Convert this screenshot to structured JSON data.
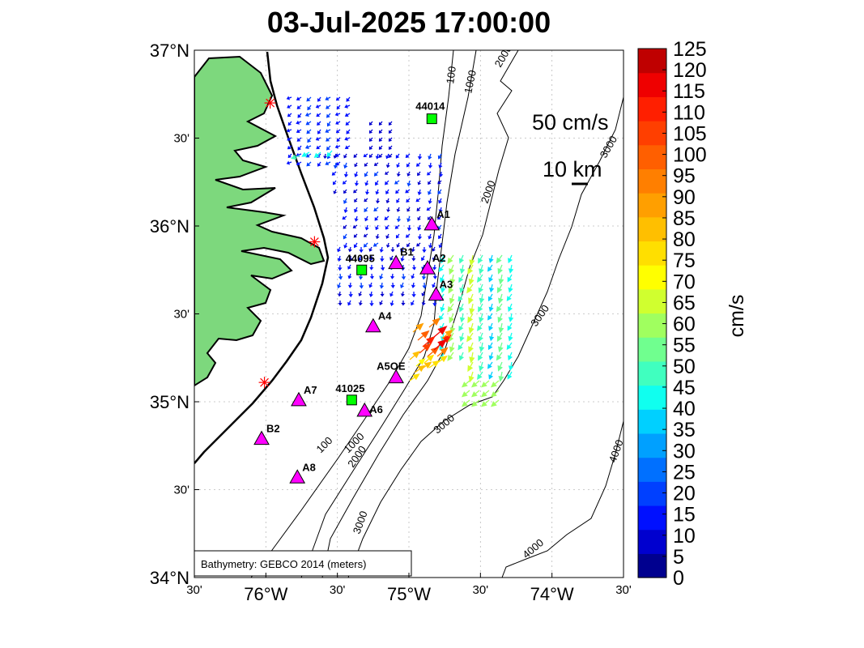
{
  "title": "03-Jul-2025 17:00:00",
  "axes": {
    "lat_ticks": [
      {
        "lat": 37.0,
        "label": "37°N",
        "major": true
      },
      {
        "lat": 36.5,
        "label": "30'",
        "major": false
      },
      {
        "lat": 36.0,
        "label": "36°N",
        "major": true
      },
      {
        "lat": 35.5,
        "label": "30'",
        "major": false
      },
      {
        "lat": 35.0,
        "label": "35°N",
        "major": true
      },
      {
        "lat": 34.5,
        "label": "30'",
        "major": false
      },
      {
        "lat": 34.0,
        "label": "34°N",
        "major": true
      }
    ],
    "lon_ticks": [
      {
        "lon": -76.5,
        "label": "30'",
        "major": false
      },
      {
        "lon": -76.0,
        "label": "76°W",
        "major": true
      },
      {
        "lon": -75.5,
        "label": "30'",
        "major": false
      },
      {
        "lon": -75.0,
        "label": "75°W",
        "major": true
      },
      {
        "lon": -74.5,
        "label": "30'",
        "major": false
      },
      {
        "lon": -74.0,
        "label": "74°W",
        "major": true
      },
      {
        "lon": -73.5,
        "label": "30'",
        "major": false
      }
    ],
    "lon_range": [
      -76.5,
      -73.5
    ],
    "lat_range": [
      34.0,
      37.0
    ],
    "grid": true
  },
  "scale": {
    "vector_label": "50 cm/s",
    "distance_label": "10 km"
  },
  "bathymetry_note": "Bathymetry: GEBCO 2014 (meters)",
  "colorbar": {
    "unit_label": "cm/s",
    "min": 0,
    "max": 125,
    "step": 5,
    "tick_labels": [
      "0",
      "5",
      "10",
      "15",
      "20",
      "25",
      "30",
      "35",
      "40",
      "45",
      "50",
      "55",
      "60",
      "65",
      "70",
      "75",
      "80",
      "85",
      "90",
      "95",
      "100",
      "105",
      "110",
      "115",
      "120",
      "125"
    ],
    "colors": [
      "#00008f",
      "#0000cf",
      "#0010ff",
      "#0040ff",
      "#0070ff",
      "#00a0ff",
      "#00d0ff",
      "#10ffef",
      "#40ffbf",
      "#70ff8f",
      "#a0ff5f",
      "#d0ff2f",
      "#ffff00",
      "#ffdf00",
      "#ffbf00",
      "#ff9f00",
      "#ff7f00",
      "#ff5f00",
      "#ff3f00",
      "#ff1f00",
      "#ef0000",
      "#bf0000"
    ]
  },
  "stations": [
    {
      "id": "44014",
      "type": "buoy",
      "lon": -74.84,
      "lat": 36.61
    },
    {
      "id": "44095",
      "type": "buoy",
      "lon": -75.33,
      "lat": 35.75
    },
    {
      "id": "41025",
      "type": "buoy",
      "lon": -75.4,
      "lat": 35.01
    },
    {
      "id": "A1",
      "type": "mooring",
      "lon": -74.84,
      "lat": 36.01
    },
    {
      "id": "A2",
      "type": "mooring",
      "lon": -74.87,
      "lat": 35.76
    },
    {
      "id": "A3",
      "type": "mooring",
      "lon": -74.81,
      "lat": 35.61
    },
    {
      "id": "B1",
      "type": "mooring",
      "lon": -75.09,
      "lat": 35.79
    },
    {
      "id": "A4",
      "type": "mooring",
      "lon": -75.25,
      "lat": 35.43
    },
    {
      "id": "A5OE",
      "type": "mooring",
      "lon": -75.09,
      "lat": 35.14
    },
    {
      "id": "A6",
      "type": "mooring",
      "lon": -75.31,
      "lat": 34.95
    },
    {
      "id": "A7",
      "type": "mooring",
      "lon": -75.77,
      "lat": 35.01
    },
    {
      "id": "B2",
      "type": "mooring",
      "lon": -76.03,
      "lat": 34.79
    },
    {
      "id": "A8",
      "type": "mooring",
      "lon": -75.78,
      "lat": 34.57
    }
  ],
  "radar_sites": [
    {
      "lon": -75.97,
      "lat": 36.7
    },
    {
      "lon": -75.66,
      "lat": 35.91
    },
    {
      "lon": -76.01,
      "lat": 35.11
    }
  ],
  "contour_labels": [
    "100",
    "1000",
    "2000",
    "3000",
    "4000"
  ]
}
